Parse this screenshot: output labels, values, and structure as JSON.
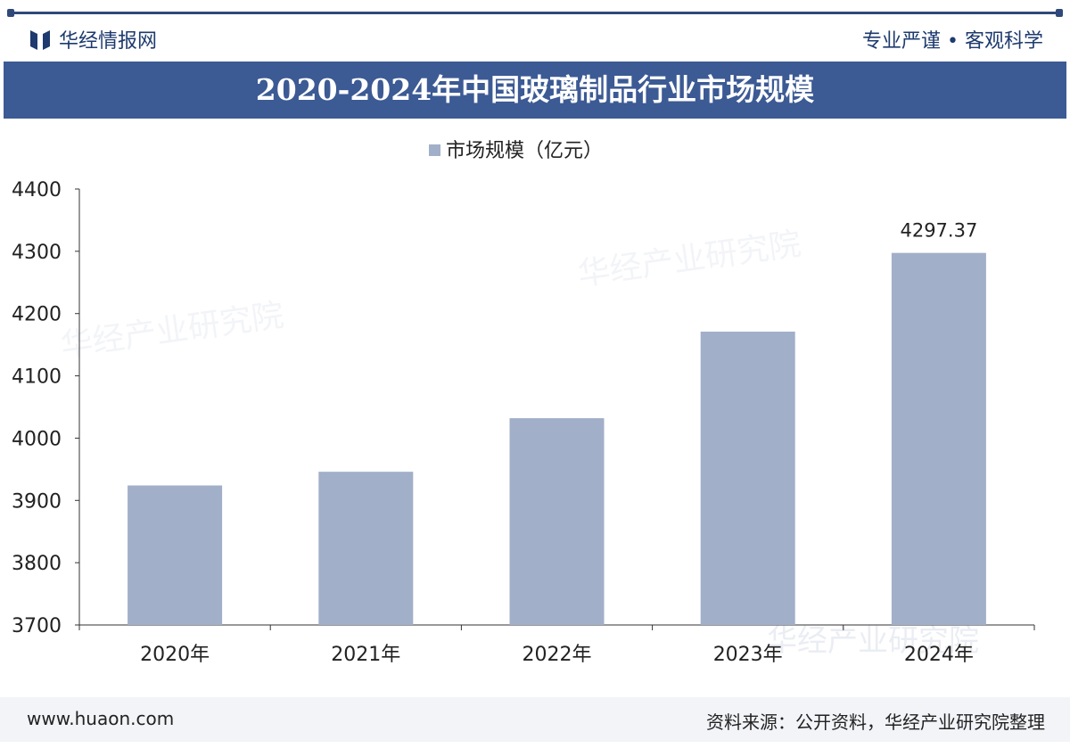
{
  "header": {
    "brand": "华经情报网",
    "slogan": "专业严谨 • 客观科学",
    "title": "2020-2024年中国玻璃制品行业市场规模"
  },
  "footer": {
    "website": "www.huaon.com",
    "source": "资料来源：公开资料，华经产业研究院整理"
  },
  "watermark": "华经产业研究院",
  "colors": {
    "bar": "#a1afc9",
    "banner": "#3c5a94"
  },
  "chart_data": {
    "type": "bar",
    "title": "2020-2024年中国玻璃制品行业市场规模",
    "categories": [
      "2020年",
      "2021年",
      "2022年",
      "2023年",
      "2024年"
    ],
    "series": [
      {
        "name": "市场规模（亿元）",
        "values": [
          3924,
          3946,
          4032,
          4171,
          4297.37
        ]
      }
    ],
    "data_labels": [
      null,
      null,
      null,
      null,
      "4297.37"
    ],
    "ylim": [
      3700,
      4400
    ],
    "yticks": [
      "3700",
      "3800",
      "3900",
      "4000",
      "4100",
      "4200",
      "4300",
      "4400"
    ],
    "legend": "top-center",
    "grid": false
  }
}
